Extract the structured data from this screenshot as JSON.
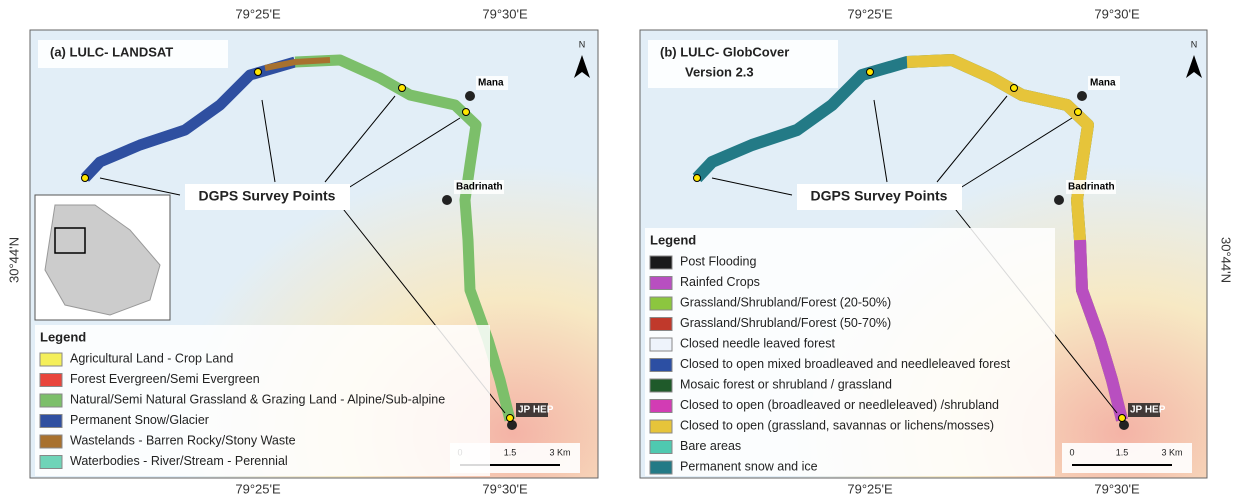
{
  "panels": [
    {
      "title_lines": [
        "(a) LULC- LANDSAT"
      ],
      "top_labels": [
        "79°25'E",
        "79°30'E"
      ],
      "bottom_labels": [
        "79°25'E",
        "79°30'E"
      ],
      "lat_label": "30°44'N",
      "north": "N",
      "places": [
        "Mana",
        "Badrinath",
        "JP HEP"
      ],
      "callout": "DGPS Survey Points",
      "scale_labels": [
        "0",
        "1.5",
        "3 Km"
      ],
      "legend": {
        "title": "Legend",
        "items": [
          {
            "label": "Agricultural Land - Crop Land",
            "color": "#f4ef5a"
          },
          {
            "label": "Forest Evergreen/Semi Evergreen",
            "color": "#e8453c"
          },
          {
            "label": "Natural/Semi Natural Grassland & Grazing Land - Alpine/Sub-alpine",
            "color": "#7cbf6a"
          },
          {
            "label": "Permanent Snow/Glacier",
            "color": "#2f4fa0"
          },
          {
            "label": "Wastelands - Barren Rocky/Stony Waste",
            "color": "#a8712e"
          },
          {
            "label": "Waterbodies - River/Stream - Perennial",
            "color": "#6fd4b8"
          }
        ]
      }
    },
    {
      "title_lines": [
        "(b) LULC- GlobCover",
        "Version 2.3"
      ],
      "top_labels": [
        "79°25'E",
        "79°30'E"
      ],
      "bottom_labels": [
        "79°25'E",
        "79°30'E"
      ],
      "lat_label": "30°44'N",
      "north": "N",
      "places": [
        "Mana",
        "Badrinath",
        "JP HEP"
      ],
      "callout": "DGPS Survey Points",
      "scale_labels": [
        "0",
        "1.5",
        "3 Km"
      ],
      "legend": {
        "title": "Legend",
        "items": [
          {
            "label": "Post Flooding",
            "color": "#1a1a1a"
          },
          {
            "label": "Rainfed Crops",
            "color": "#b84fc0"
          },
          {
            "label": "Grassland/Shrubland/Forest (20-50%)",
            "color": "#8cc63f"
          },
          {
            "label": "Grassland/Shrubland/Forest (50-70%)",
            "color": "#c0392b"
          },
          {
            "label": "Closed needle leaved forest",
            "color": "#eef3fb"
          },
          {
            "label": "Closed to open mixed broadleaved and needleleaved forest",
            "color": "#2c4fa3"
          },
          {
            "label": "Mosaic forest or shrubland / grassland",
            "color": "#1f5a2a"
          },
          {
            "label": "Closed to open (broadleaved or needleleaved) /shrubland",
            "color": "#d23cb4"
          },
          {
            "label": "Closed to open (grassland, savannas or lichens/mosses)",
            "color": "#e6c43a"
          },
          {
            "label": "Bare areas",
            "color": "#4fc9b0"
          },
          {
            "label": "Permanent snow and ice",
            "color": "#237a86"
          }
        ]
      }
    }
  ]
}
